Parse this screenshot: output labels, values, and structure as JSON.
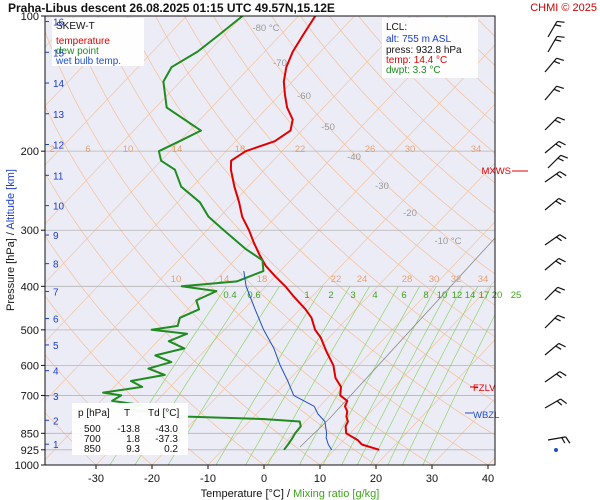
{
  "header": {
    "station": "Praha-Libus",
    "direction": "descent",
    "datetime": "26.08.2025 01:15 UTC",
    "coords": "49.57N,15.12E",
    "copyright": "CHMI © 2025"
  },
  "legend": {
    "title": "SKEW-T",
    "items": [
      {
        "label": "temperature",
        "color": "#e00000"
      },
      {
        "label": "dew point",
        "color": "#1f8c1f"
      },
      {
        "label": "wet bulb temp.",
        "color": "#1f4fc8"
      }
    ]
  },
  "lcl_box": {
    "title": "LCL:",
    "alt": "alt: 755 m ASL",
    "press": "press: 932.8 hPa",
    "temp": "temp: 14.4 °C",
    "dwpt": "dwpt: 3.3 °C",
    "colors": {
      "alt": "#1a3ccf",
      "press": "#111111",
      "temp": "#e00000",
      "dwpt": "#1f8c1f"
    }
  },
  "levels": [
    {
      "label": "MXWS",
      "color": "#e00000"
    },
    {
      "label": "FZLV",
      "color": "#e00000"
    },
    {
      "label": "WBZL",
      "color": "#1f4fc8"
    }
  ],
  "summary_table": {
    "headers": [
      "p [hPa]",
      "T",
      "Td [°C]"
    ],
    "rows": [
      [
        "500",
        "-13.8",
        "-43.0"
      ],
      [
        "700",
        "1.8",
        "-37.3"
      ],
      [
        "850",
        "9.3",
        "0.2"
      ]
    ]
  },
  "chart_data": {
    "type": "line",
    "subtype": "skew-t log-p diagram",
    "xlabel": "Temperature [°C]",
    "xlabel_sep": "/",
    "xlabel_secondary": "Mixing ratio [g/kg]",
    "ylabel_left": "Pressure [hPa]",
    "ylabel_sep": "/",
    "ylabel_right": "Altitude [km]",
    "x_ticks": [
      -30,
      -20,
      -10,
      0,
      10,
      20,
      30,
      40
    ],
    "xlim": [
      -40,
      45
    ],
    "y_ticks": [
      100,
      200,
      300,
      400,
      500,
      600,
      700,
      850,
      925,
      1000
    ],
    "ylim": [
      1000,
      100
    ],
    "y_scale": "log",
    "altitude_ticks_km": [
      1,
      2,
      3,
      4,
      5,
      6,
      7,
      8,
      9,
      10,
      11,
      12,
      13,
      14,
      15,
      16
    ],
    "dry_adiabat_labels": [
      "2",
      "6",
      "10",
      "14",
      "18",
      "22",
      "26",
      "30",
      "34",
      "10",
      "14",
      "18",
      "22",
      "24",
      "28",
      "30",
      "32",
      "34",
      "14",
      "16",
      "18",
      "20",
      "24",
      "26",
      "28",
      "30",
      "32",
      "34"
    ],
    "isotherm_labels": [
      "-80 °C",
      "-70",
      "-60",
      "-50",
      "-40",
      "-30",
      "-20",
      "-10 °C"
    ],
    "mixing_ratio_labels": [
      "0.4",
      "0.6",
      "1",
      "2",
      "3",
      "4",
      "6",
      "8",
      "10",
      "12",
      "14",
      "17",
      "20",
      "25"
    ],
    "series": [
      {
        "name": "temperature",
        "color": "#e00000",
        "points": [
          [
            925,
            18.0
          ],
          [
            900,
            14.0
          ],
          [
            880,
            12.5
          ],
          [
            850,
            9.3
          ],
          [
            820,
            8.0
          ],
          [
            800,
            7.6
          ],
          [
            780,
            6.5
          ],
          [
            760,
            5.8
          ],
          [
            740,
            4.5
          ],
          [
            720,
            4.0
          ],
          [
            700,
            1.8
          ],
          [
            670,
            0.5
          ],
          [
            640,
            -2.0
          ],
          [
            600,
            -4.5
          ],
          [
            560,
            -8.0
          ],
          [
            520,
            -11.5
          ],
          [
            500,
            -13.8
          ],
          [
            470,
            -16.5
          ],
          [
            450,
            -19.0
          ],
          [
            420,
            -23.5
          ],
          [
            400,
            -26.5
          ],
          [
            380,
            -30.0
          ],
          [
            360,
            -33.5
          ],
          [
            340,
            -36.5
          ],
          [
            320,
            -39.5
          ],
          [
            300,
            -42.5
          ],
          [
            280,
            -46.0
          ],
          [
            260,
            -49.0
          ],
          [
            240,
            -52.5
          ],
          [
            220,
            -56.0
          ],
          [
            210,
            -57.5
          ],
          [
            200,
            -56.5
          ],
          [
            190,
            -53.0
          ],
          [
            180,
            -52.0
          ],
          [
            170,
            -53.5
          ],
          [
            160,
            -56.5
          ],
          [
            150,
            -59.0
          ],
          [
            140,
            -61.5
          ],
          [
            130,
            -63.5
          ],
          [
            120,
            -65.0
          ],
          [
            110,
            -66.0
          ],
          [
            100,
            -67.0
          ]
        ]
      },
      {
        "name": "dew point",
        "color": "#1f8c1f",
        "points": [
          [
            925,
            1.0
          ],
          [
            900,
            0.8
          ],
          [
            870,
            0.5
          ],
          [
            850,
            0.2
          ],
          [
            820,
            0.0
          ],
          [
            800,
            -1.0
          ],
          [
            790,
            -8.0
          ],
          [
            780,
            -22.0
          ],
          [
            770,
            -25.0
          ],
          [
            760,
            -30.0
          ],
          [
            750,
            -35.0
          ],
          [
            735,
            -32.0
          ],
          [
            720,
            -38.0
          ],
          [
            700,
            -37.3
          ],
          [
            690,
            -41.0
          ],
          [
            670,
            -35.0
          ],
          [
            650,
            -38.0
          ],
          [
            630,
            -33.0
          ],
          [
            610,
            -37.0
          ],
          [
            590,
            -34.0
          ],
          [
            570,
            -38.0
          ],
          [
            550,
            -34.0
          ],
          [
            530,
            -38.0
          ],
          [
            510,
            -36.0
          ],
          [
            500,
            -43.0
          ],
          [
            490,
            -39.0
          ],
          [
            470,
            -40.0
          ],
          [
            450,
            -38.0
          ],
          [
            430,
            -40.0
          ],
          [
            410,
            -38.0
          ],
          [
            400,
            -45.0
          ],
          [
            390,
            -36.0
          ],
          [
            370,
            -33.0
          ],
          [
            350,
            -35.0
          ],
          [
            330,
            -40.0
          ],
          [
            300,
            -47.0
          ],
          [
            280,
            -52.0
          ],
          [
            260,
            -56.0
          ],
          [
            240,
            -62.0
          ],
          [
            220,
            -66.0
          ],
          [
            210,
            -70.0
          ],
          [
            200,
            -72.0
          ],
          [
            190,
            -70.0
          ],
          [
            180,
            -68.0
          ],
          [
            160,
            -78.0
          ],
          [
            140,
            -83.0
          ],
          [
            130,
            -84.0
          ],
          [
            120,
            -82.0
          ],
          [
            110,
            -81.0
          ],
          [
            100,
            -80.0
          ]
        ]
      },
      {
        "name": "wet bulb temp.",
        "color": "#1f4fc8",
        "points": [
          [
            925,
            9.5
          ],
          [
            900,
            8.0
          ],
          [
            870,
            6.5
          ],
          [
            850,
            5.8
          ],
          [
            800,
            3.5
          ],
          [
            770,
            1.0
          ],
          [
            740,
            -1.0
          ],
          [
            700,
            -6.5
          ],
          [
            650,
            -10.0
          ],
          [
            600,
            -14.0
          ],
          [
            550,
            -18.0
          ],
          [
            500,
            -23.0
          ],
          [
            450,
            -28.0
          ],
          [
            400,
            -33.5
          ],
          [
            370,
            -36.5
          ]
        ]
      }
    ],
    "grid": true
  }
}
